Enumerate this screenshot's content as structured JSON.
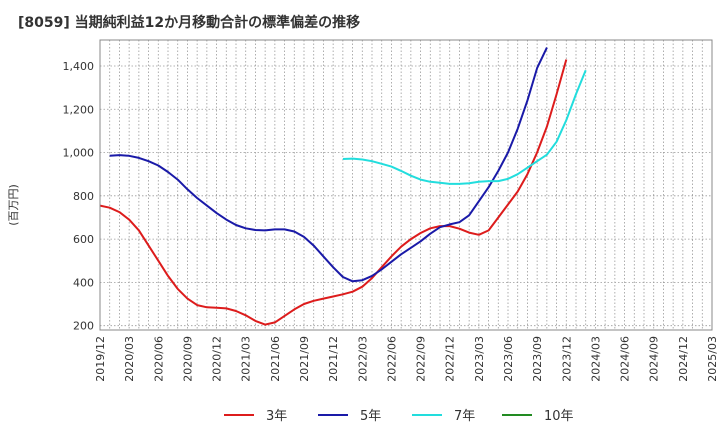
{
  "chart_data": {
    "type": "line",
    "title": "[8059]  当期純利益12か月移動合計の標準偏差の推移",
    "ylabel": "(百万円)",
    "xlabel": "",
    "ylim": [
      180,
      1520
    ],
    "yticks": [
      200,
      400,
      600,
      800,
      1000,
      1200,
      1400
    ],
    "ytick_labels": [
      "200",
      "400",
      "600",
      "800",
      "1,000",
      "1,200",
      "1,400"
    ],
    "xtick_labels": [
      "2019/12",
      "2020/03",
      "2020/06",
      "2020/09",
      "2020/12",
      "2021/03",
      "2021/06",
      "2021/09",
      "2021/12",
      "2022/03",
      "2022/06",
      "2022/09",
      "2022/12",
      "2023/03",
      "2023/06",
      "2023/09",
      "2023/12",
      "2024/03",
      "2024/06",
      "2024/09",
      "2024/12",
      "2025/03"
    ],
    "grid": true,
    "legend_position": "bottom",
    "series": [
      {
        "name": "3年",
        "color": "#dd1c1c",
        "start_index": 0,
        "values": [
          755,
          745,
          725,
          690,
          640,
          570,
          500,
          430,
          370,
          325,
          295,
          285,
          283,
          280,
          268,
          248,
          222,
          205,
          215,
          245,
          275,
          300,
          315,
          325,
          335,
          345,
          357,
          380,
          420,
          470,
          520,
          565,
          600,
          628,
          650,
          660,
          660,
          648,
          630,
          620,
          640,
          700,
          760,
          820,
          900,
          1000,
          1120,
          1270,
          1430
        ]
      },
      {
        "name": "5年",
        "color": "#1a1aa8",
        "start_index": 1,
        "values": [
          985,
          988,
          985,
          975,
          960,
          940,
          910,
          875,
          830,
          790,
          755,
          720,
          690,
          665,
          650,
          642,
          640,
          645,
          645,
          635,
          610,
          570,
          520,
          470,
          425,
          405,
          410,
          430,
          460,
          495,
          530,
          560,
          590,
          625,
          655,
          668,
          678,
          710,
          775,
          840,
          915,
          1000,
          1110,
          1240,
          1390,
          1485
        ]
      },
      {
        "name": "7年",
        "color": "#22dddd",
        "start_index": 25,
        "values": [
          970,
          972,
          968,
          960,
          948,
          935,
          915,
          893,
          875,
          865,
          860,
          855,
          855,
          858,
          865,
          868,
          868,
          878,
          900,
          930,
          960,
          990,
          1050,
          1150,
          1270,
          1380
        ]
      },
      {
        "name": "10年",
        "color": "#228b22",
        "start_index": 0,
        "values": []
      }
    ]
  }
}
